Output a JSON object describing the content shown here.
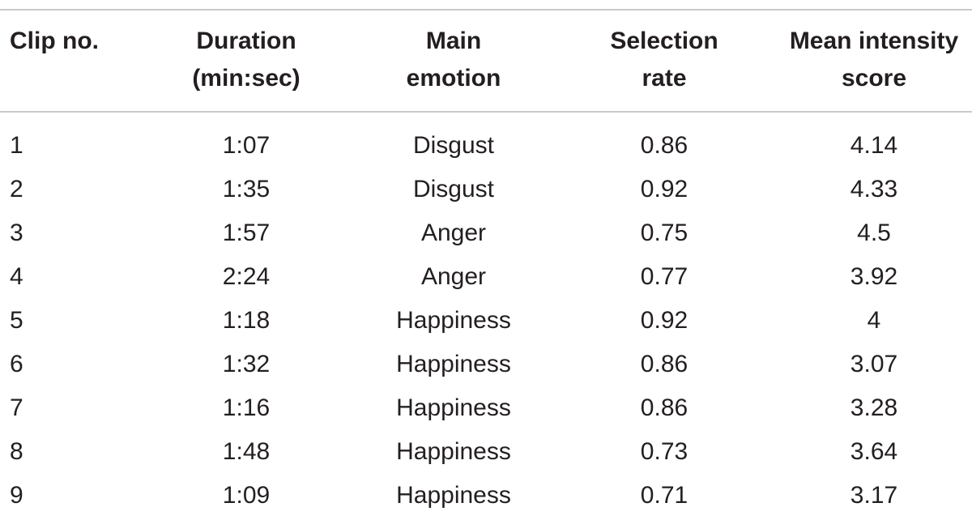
{
  "table": {
    "columns": [
      {
        "lines": [
          "Clip no."
        ]
      },
      {
        "lines": [
          "Duration",
          "(min:sec)"
        ]
      },
      {
        "lines": [
          "Main",
          "emotion"
        ]
      },
      {
        "lines": [
          "Selection",
          "rate"
        ]
      },
      {
        "lines": [
          "Mean intensity",
          "score"
        ]
      }
    ],
    "rows": [
      [
        "1",
        "1:07",
        "Disgust",
        "0.86",
        "4.14"
      ],
      [
        "2",
        "1:35",
        "Disgust",
        "0.92",
        "4.33"
      ],
      [
        "3",
        "1:57",
        "Anger",
        "0.75",
        "4.5"
      ],
      [
        "4",
        "2:24",
        "Anger",
        "0.77",
        "3.92"
      ],
      [
        "5",
        "1:18",
        "Happiness",
        "0.92",
        "4"
      ],
      [
        "6",
        "1:32",
        "Happiness",
        "0.86",
        "3.07"
      ],
      [
        "7",
        "1:16",
        "Happiness",
        "0.86",
        "3.28"
      ],
      [
        "8",
        "1:48",
        "Happiness",
        "0.73",
        "3.64"
      ],
      [
        "9",
        "1:09",
        "Happiness",
        "0.71",
        "3.17"
      ]
    ]
  }
}
